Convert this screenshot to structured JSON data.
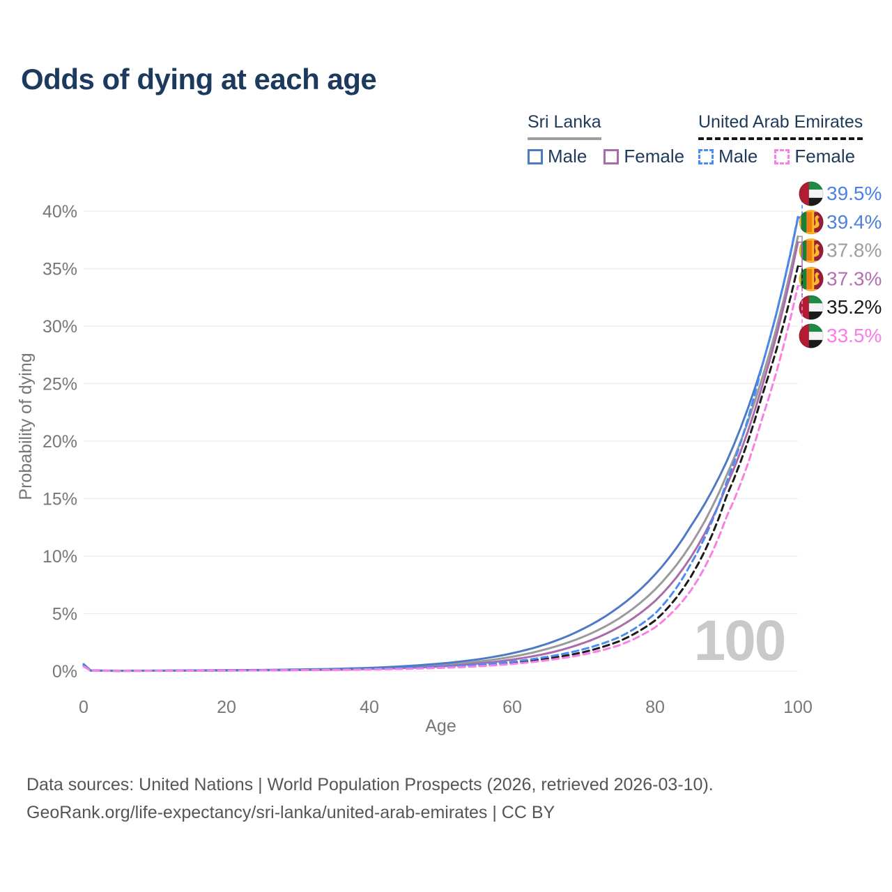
{
  "title": "Odds of dying at each age",
  "legend": {
    "groups": [
      {
        "name": "Sri Lanka",
        "line_style": "solid",
        "underline_color": "#9e9e9e",
        "items": [
          {
            "label": "Male",
            "color": "#4e79c5"
          },
          {
            "label": "Female",
            "color": "#a96ba9"
          }
        ]
      },
      {
        "name": "United Arab Emirates",
        "line_style": "dashed",
        "underline_color": "#161616",
        "items": [
          {
            "label": "Male",
            "color": "#4a8cf3"
          },
          {
            "label": "Female",
            "color": "#f97fe2"
          }
        ]
      }
    ]
  },
  "chart_data": {
    "type": "line",
    "title": "Odds of dying at each age",
    "xlabel": "Age",
    "ylabel": "Probability of dying",
    "xlim": [
      0,
      100
    ],
    "ylim": [
      0,
      40
    ],
    "grid": "horizontal",
    "watermark": "100",
    "x_tick_values": [
      0,
      20,
      40,
      60,
      80,
      100
    ],
    "x_tick_labels": [
      "0",
      "20",
      "40",
      "60",
      "80",
      "100"
    ],
    "y_tick_values": [
      0,
      5,
      10,
      15,
      20,
      25,
      30,
      35,
      40
    ],
    "y_tick_labels": [
      "0%",
      "5%",
      "10%",
      "15%",
      "20%",
      "25%",
      "30%",
      "35%",
      "40%"
    ],
    "x": [
      0,
      1,
      5,
      10,
      15,
      20,
      25,
      30,
      35,
      40,
      45,
      50,
      55,
      60,
      65,
      70,
      75,
      80,
      85,
      90,
      95,
      100
    ],
    "series": [
      {
        "name": "Sri Lanka Both sexes",
        "country": "LK",
        "flag_icon": "sri-lanka-flag-icon",
        "color": "#9a9a9a",
        "label_color": "#9e9e9e",
        "dashed": false,
        "end_value": 37.8,
        "end_label": "37.8%",
        "values": [
          0.55,
          0.05,
          0.03,
          0.03,
          0.05,
          0.07,
          0.08,
          0.11,
          0.15,
          0.22,
          0.34,
          0.52,
          0.8,
          1.25,
          1.95,
          3.0,
          4.6,
          7.1,
          11.0,
          17.0,
          25.5,
          37.8
        ]
      },
      {
        "name": "Sri Lanka Female",
        "country": "LK",
        "flag_icon": "sri-lanka-flag-icon",
        "color": "#a96ba9",
        "label_color": "#b26fb2",
        "dashed": false,
        "end_value": 37.3,
        "end_label": "37.3%",
        "values": [
          0.5,
          0.04,
          0.02,
          0.03,
          0.04,
          0.05,
          0.07,
          0.09,
          0.12,
          0.18,
          0.27,
          0.41,
          0.64,
          1.0,
          1.55,
          2.45,
          3.85,
          6.1,
          9.9,
          16.1,
          24.8,
          37.3
        ]
      },
      {
        "name": "Sri Lanka Male",
        "country": "LK",
        "flag_icon": "sri-lanka-flag-icon",
        "color": "#4e79c5",
        "label_color": "#5080d8",
        "dashed": false,
        "end_value": 39.4,
        "end_label": "39.4%",
        "values": [
          0.6,
          0.05,
          0.03,
          0.04,
          0.06,
          0.08,
          0.1,
          0.14,
          0.19,
          0.28,
          0.43,
          0.66,
          1.0,
          1.55,
          2.4,
          3.7,
          5.6,
          8.4,
          12.6,
          18.2,
          26.6,
          39.4
        ]
      },
      {
        "name": "United Arab Emirates Both sexes",
        "country": "AE",
        "flag_icon": "uae-flag-icon",
        "color": "#1b1b1b",
        "label_color": "#1a1a1a",
        "dashed": true,
        "end_value": 35.2,
        "end_label": "35.2%",
        "values": [
          0.45,
          0.04,
          0.02,
          0.03,
          0.04,
          0.06,
          0.08,
          0.1,
          0.12,
          0.16,
          0.23,
          0.33,
          0.48,
          0.72,
          1.1,
          1.65,
          2.6,
          4.4,
          8.2,
          15.2,
          24.0,
          35.2
        ]
      },
      {
        "name": "United Arab Emirates Male",
        "country": "AE",
        "flag_icon": "uae-flag-icon",
        "color": "#4a8cf3",
        "label_color": "#4b82e8",
        "dashed": true,
        "end_value": 39.5,
        "end_label": "39.5%",
        "values": [
          0.5,
          0.04,
          0.03,
          0.03,
          0.05,
          0.07,
          0.09,
          0.11,
          0.14,
          0.19,
          0.27,
          0.38,
          0.55,
          0.82,
          1.25,
          1.9,
          2.95,
          5.0,
          9.3,
          16.4,
          26.6,
          39.5
        ]
      },
      {
        "name": "United Arab Emirates Female",
        "country": "AE",
        "flag_icon": "uae-flag-icon",
        "color": "#f97fe2",
        "label_color": "#fb7ce8",
        "dashed": true,
        "end_value": 33.5,
        "end_label": "33.5%",
        "values": [
          0.4,
          0.03,
          0.02,
          0.02,
          0.03,
          0.05,
          0.06,
          0.08,
          0.1,
          0.14,
          0.19,
          0.28,
          0.41,
          0.62,
          0.95,
          1.45,
          2.25,
          3.8,
          7.0,
          13.4,
          22.0,
          33.5
        ]
      }
    ]
  },
  "footer": {
    "line1": "Data sources: United Nations | World Population Prospects (2026, retrieved 2026-03-10).",
    "line2": "GeoRank.org/life-expectancy/sri-lanka/united-arab-emirates | CC BY"
  }
}
